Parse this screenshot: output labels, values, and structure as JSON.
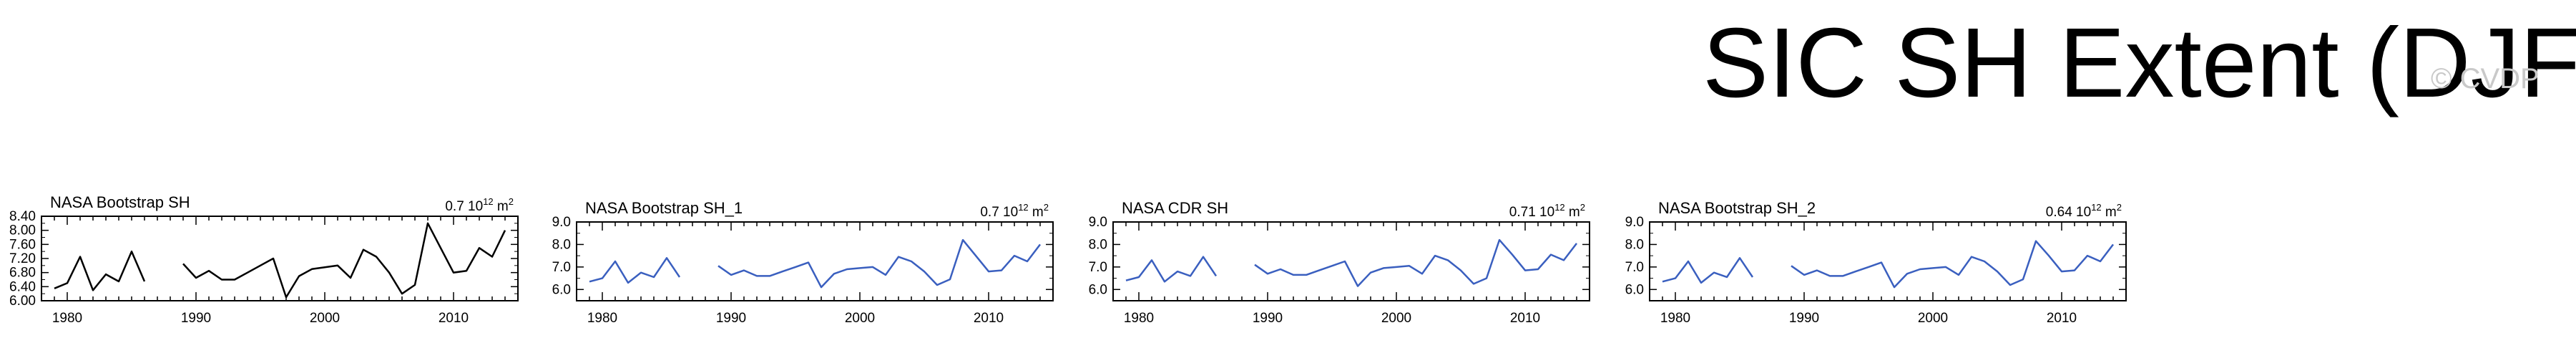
{
  "title": "SIC SH Extent (DJF)",
  "watermark": "© CVDP",
  "colors": {
    "black_series": "#000000",
    "blue_series": "#3a5fbf"
  },
  "chart_data": [
    {
      "type": "line",
      "title": "NASA Bootstrap SH",
      "annotation": "0.7 10",
      "annotation_exp": "12",
      "annotation_unit": "m",
      "annotation_unit_exp": "2",
      "xlim": [
        1978,
        2015
      ],
      "ylim": [
        6.0,
        8.4
      ],
      "yticks": [
        "8.40",
        "8.00",
        "7.60",
        "7.20",
        "6.80",
        "6.40",
        "6.00"
      ],
      "ytick_values": [
        8.4,
        8.0,
        7.6,
        7.2,
        6.8,
        6.4,
        6.0
      ],
      "xticks": [
        "1980",
        "1990",
        "2000",
        "2010"
      ],
      "color": "#000000",
      "series": [
        {
          "x": [
            1979,
            1980,
            1981,
            1982,
            1983,
            1984,
            1985,
            1986,
            1987,
            1988,
            1989,
            1990,
            1991,
            1992,
            1993,
            1994,
            1995,
            1996,
            1997,
            1998,
            1999,
            2000,
            2001,
            2002,
            2003,
            2004,
            2005,
            2006,
            2007,
            2008,
            2009,
            2010,
            2011,
            2012,
            2013,
            2014
          ],
          "y": [
            6.35,
            6.5,
            7.25,
            6.3,
            6.75,
            6.55,
            7.4,
            6.55,
            null,
            null,
            7.05,
            6.65,
            6.85,
            6.6,
            6.6,
            6.8,
            7.0,
            7.2,
            6.1,
            6.7,
            6.9,
            6.95,
            7.0,
            6.65,
            7.45,
            7.25,
            6.8,
            6.2,
            6.45,
            8.2,
            7.5,
            6.8,
            6.85,
            7.5,
            7.25,
            8.0
          ]
        }
      ]
    },
    {
      "type": "line",
      "title": "NASA Bootstrap SH_1",
      "annotation": "0.7 10",
      "annotation_exp": "12",
      "annotation_unit": "m",
      "annotation_unit_exp": "2",
      "xlim": [
        1978,
        2015
      ],
      "ylim": [
        5.5,
        9.0
      ],
      "yticks": [
        "9.0",
        "8.0",
        "7.0",
        "6.0"
      ],
      "ytick_values": [
        9.0,
        8.0,
        7.0,
        6.0
      ],
      "xticks": [
        "1980",
        "1990",
        "2000",
        "2010"
      ],
      "color": "#3a5fbf",
      "series": [
        {
          "x": [
            1979,
            1980,
            1981,
            1982,
            1983,
            1984,
            1985,
            1986,
            1987,
            1988,
            1989,
            1990,
            1991,
            1992,
            1993,
            1994,
            1995,
            1996,
            1997,
            1998,
            1999,
            2000,
            2001,
            2002,
            2003,
            2004,
            2005,
            2006,
            2007,
            2008,
            2009,
            2010,
            2011,
            2012,
            2013,
            2014
          ],
          "y": [
            6.35,
            6.5,
            7.25,
            6.3,
            6.75,
            6.55,
            7.4,
            6.55,
            null,
            null,
            7.05,
            6.65,
            6.85,
            6.6,
            6.6,
            6.8,
            7.0,
            7.2,
            6.1,
            6.7,
            6.9,
            6.95,
            7.0,
            6.65,
            7.45,
            7.25,
            6.8,
            6.2,
            6.45,
            8.2,
            7.5,
            6.8,
            6.85,
            7.5,
            7.25,
            8.0
          ]
        }
      ]
    },
    {
      "type": "line",
      "title": "NASA CDR SH",
      "annotation": "0.71 10",
      "annotation_exp": "12",
      "annotation_unit": "m",
      "annotation_unit_exp": "2",
      "xlim": [
        1978,
        2015
      ],
      "ylim": [
        5.5,
        9.0
      ],
      "yticks": [
        "9.0",
        "8.0",
        "7.0",
        "6.0"
      ],
      "ytick_values": [
        9.0,
        8.0,
        7.0,
        6.0
      ],
      "xticks": [
        "1980",
        "1990",
        "2000",
        "2010"
      ],
      "color": "#3a5fbf",
      "series": [
        {
          "x": [
            1979,
            1980,
            1981,
            1982,
            1983,
            1984,
            1985,
            1986,
            1987,
            1988,
            1989,
            1990,
            1991,
            1992,
            1993,
            1994,
            1995,
            1996,
            1997,
            1998,
            1999,
            2000,
            2001,
            2002,
            2003,
            2004,
            2005,
            2006,
            2007,
            2008,
            2009,
            2010,
            2011,
            2012,
            2013,
            2014
          ],
          "y": [
            6.4,
            6.55,
            7.3,
            6.35,
            6.8,
            6.6,
            7.45,
            6.6,
            null,
            null,
            7.1,
            6.7,
            6.9,
            6.65,
            6.65,
            6.85,
            7.05,
            7.25,
            6.15,
            6.75,
            6.95,
            7.0,
            7.05,
            6.7,
            7.5,
            7.3,
            6.85,
            6.25,
            6.5,
            8.2,
            7.55,
            6.85,
            6.9,
            7.55,
            7.3,
            8.05
          ]
        }
      ]
    },
    {
      "type": "line",
      "title": "NASA Bootstrap SH_2",
      "annotation": "0.64 10",
      "annotation_exp": "12",
      "annotation_unit": "m",
      "annotation_unit_exp": "2",
      "xlim": [
        1978,
        2015
      ],
      "ylim": [
        5.5,
        9.0
      ],
      "yticks": [
        "9.0",
        "8.0",
        "7.0",
        "6.0"
      ],
      "ytick_values": [
        9.0,
        8.0,
        7.0,
        6.0
      ],
      "xticks": [
        "1980",
        "1990",
        "2000",
        "2010"
      ],
      "color": "#3a5fbf",
      "series": [
        {
          "x": [
            1979,
            1980,
            1981,
            1982,
            1983,
            1984,
            1985,
            1986,
            1987,
            1988,
            1989,
            1990,
            1991,
            1992,
            1993,
            1994,
            1995,
            1996,
            1997,
            1998,
            1999,
            2000,
            2001,
            2002,
            2003,
            2004,
            2005,
            2006,
            2007,
            2008,
            2009,
            2010,
            2011,
            2012,
            2013,
            2014
          ],
          "y": [
            6.35,
            6.5,
            7.25,
            6.3,
            6.75,
            6.55,
            7.4,
            6.55,
            null,
            null,
            7.05,
            6.65,
            6.85,
            6.6,
            6.6,
            6.8,
            7.0,
            7.2,
            6.1,
            6.7,
            6.9,
            6.95,
            7.0,
            6.65,
            7.45,
            7.25,
            6.8,
            6.2,
            6.45,
            8.15,
            7.5,
            6.8,
            6.85,
            7.5,
            7.25,
            8.0
          ]
        }
      ]
    }
  ]
}
